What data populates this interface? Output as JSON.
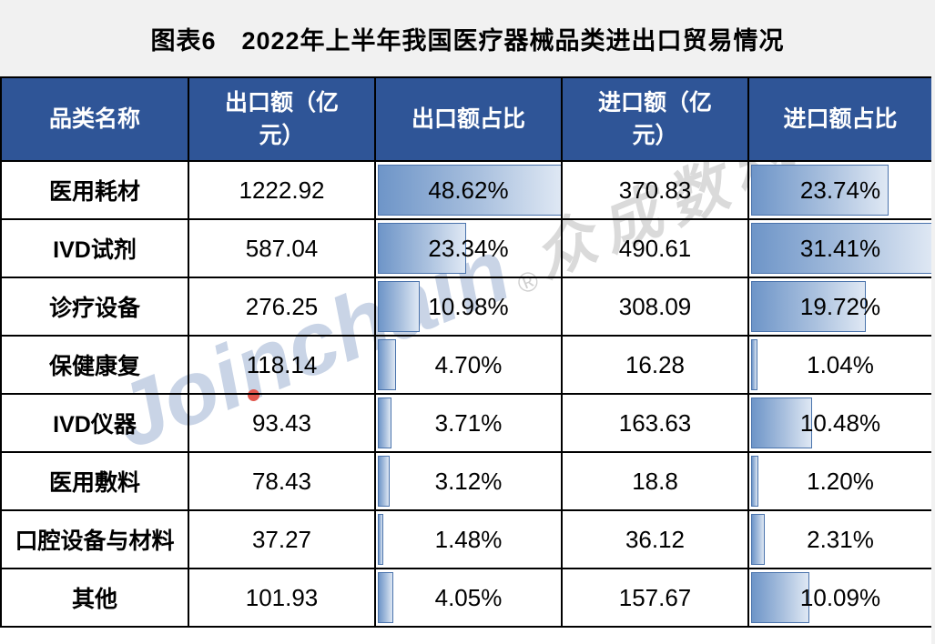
{
  "title": "图表6　2022年上半年我国医疗器械品类进出口贸易情况",
  "watermark": {
    "brand": "Joinchain",
    "reg": "®",
    "suffix": "众成数科"
  },
  "colors": {
    "page_bg": "#F1F1F1",
    "header_bg": "#2F5597",
    "header_text": "#FFFFFF",
    "grid_border": "#000000",
    "bar_gradient_start": "#6E95C8",
    "bar_gradient_end": "#DFE8F4",
    "bar_border": "#4A73AC",
    "watermark_brand": "#C9D4E6",
    "watermark_suffix": "#DADADA",
    "watermark_i_dot": "#E2574D"
  },
  "table": {
    "headers": [
      "品类名称",
      "出口额（亿元）",
      "出口额占比",
      "进口额（亿元）",
      "进口额占比"
    ],
    "rows": [
      {
        "name": "医用耗材",
        "export": "1222.92",
        "export_share": "48.62%",
        "export_bar": 100,
        "import": "370.83",
        "import_share": "23.74%",
        "import_bar": 75.6
      },
      {
        "name": "IVD试剂",
        "export": "587.04",
        "export_share": "23.34%",
        "export_bar": 48.0,
        "import": "490.61",
        "import_share": "31.41%",
        "import_bar": 100
      },
      {
        "name": "诊疗设备",
        "export": "276.25",
        "export_share": "10.98%",
        "export_bar": 22.6,
        "import": "308.09",
        "import_share": "19.72%",
        "import_bar": 62.8
      },
      {
        "name": "保健康复",
        "export": "118.14",
        "export_share": "4.70%",
        "export_bar": 9.7,
        "import": "16.28",
        "import_share": "1.04%",
        "import_bar": 3.3
      },
      {
        "name": "IVD仪器",
        "export": "93.43",
        "export_share": "3.71%",
        "export_bar": 7.6,
        "import": "163.63",
        "import_share": "10.48%",
        "import_bar": 33.4
      },
      {
        "name": "医用敷料",
        "export": "78.43",
        "export_share": "3.12%",
        "export_bar": 6.4,
        "import": "18.8",
        "import_share": "1.20%",
        "import_bar": 3.8
      },
      {
        "name": "口腔设备与材料",
        "export": "37.27",
        "export_share": "1.48%",
        "export_bar": 3.0,
        "import": "36.12",
        "import_share": "2.31%",
        "import_bar": 7.4
      },
      {
        "name": "其他",
        "export": "101.93",
        "export_share": "4.05%",
        "export_bar": 8.3,
        "import": "157.67",
        "import_share": "10.09%",
        "import_bar": 32.1
      }
    ]
  },
  "chart_data": {
    "type": "table",
    "title": "图表6　2022年上半年我国医疗器械品类进出口贸易情况",
    "columns": [
      "品类名称",
      "出口额（亿元）",
      "出口额占比",
      "进口额（亿元）",
      "进口额占比"
    ],
    "rows": [
      [
        "医用耗材",
        1222.92,
        "48.62%",
        370.83,
        "23.74%"
      ],
      [
        "IVD试剂",
        587.04,
        "23.34%",
        490.61,
        "31.41%"
      ],
      [
        "诊疗设备",
        276.25,
        "10.98%",
        308.09,
        "19.72%"
      ],
      [
        "保健康复",
        118.14,
        "4.70%",
        16.28,
        "1.04%"
      ],
      [
        "IVD仪器",
        93.43,
        "3.71%",
        163.63,
        "10.48%"
      ],
      [
        "医用敷料",
        78.43,
        "3.12%",
        18.8,
        "1.20%"
      ],
      [
        "口腔设备与材料",
        37.27,
        "1.48%",
        36.12,
        "2.31%"
      ],
      [
        "其他",
        101.93,
        "4.05%",
        157.67,
        "10.09%"
      ]
    ],
    "databars": {
      "columns_with_bars": [
        "出口额占比",
        "进口额占比"
      ],
      "export_share_scale_max": 48.62,
      "import_share_scale_max": 31.41
    }
  }
}
